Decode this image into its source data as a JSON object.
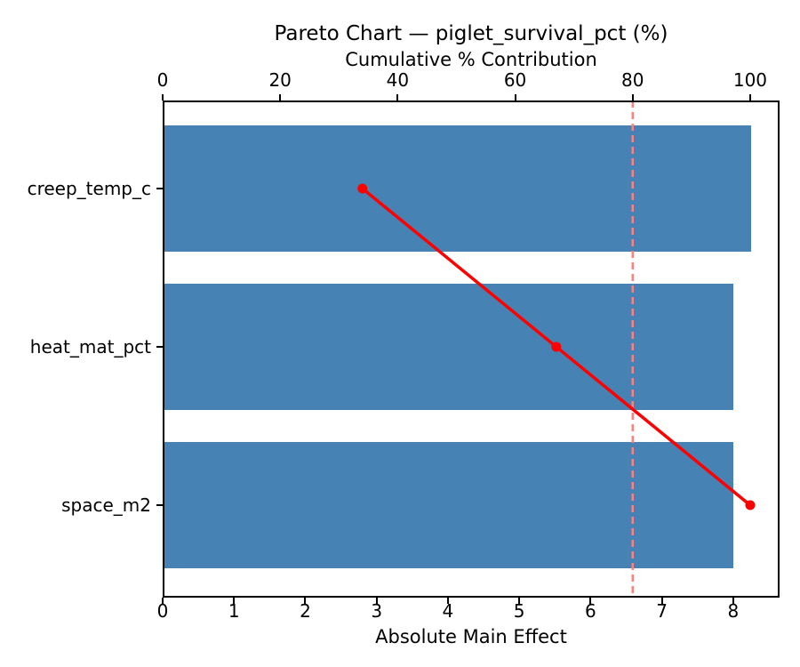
{
  "figure": {
    "title": "Pareto Chart — piglet_survival_pct (%)"
  },
  "chart_data": {
    "type": "bar",
    "subtype": "pareto-horizontal",
    "title": "Pareto Chart — piglet_survival_pct (%)",
    "categories": [
      "creep_temp_c",
      "heat_mat_pct",
      "space_m2"
    ],
    "series": [
      {
        "name": "Absolute Main Effect",
        "type": "bar",
        "axis": "bottom",
        "values": [
          8.25,
          8.0,
          8.0
        ]
      },
      {
        "name": "Cumulative % Contribution",
        "type": "line",
        "axis": "top",
        "values": [
          34.0,
          67.0,
          100.0
        ]
      }
    ],
    "bottom_axis": {
      "label": "Absolute Main Effect",
      "ticks": [
        0,
        1,
        2,
        3,
        4,
        5,
        6,
        7,
        8
      ],
      "lim": [
        0,
        8.65
      ]
    },
    "top_axis": {
      "label": "Cumulative % Contribution",
      "ticks": [
        0,
        20,
        40,
        60,
        80,
        100
      ],
      "lim": [
        0,
        105
      ]
    },
    "threshold": {
      "value": 80,
      "axis": "top",
      "style": "dashed"
    },
    "colors": {
      "bar": "#4682b4",
      "line": "#ff0000",
      "threshold": "#ff8080",
      "spine": "#000000",
      "text": "#000000"
    },
    "grid": false,
    "legend": null,
    "bar_fraction": 0.8
  }
}
